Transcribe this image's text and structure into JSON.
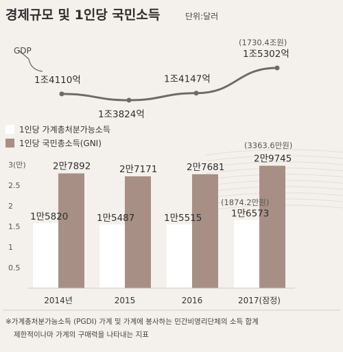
{
  "header": {
    "title": "경제규모 및 1인당 국민소득",
    "unit": "단위:달러"
  },
  "chart_data": [
    {
      "type": "line",
      "series": [
        {
          "name": "GDP",
          "values": [
            14110,
            13824,
            14147,
            15302
          ],
          "labels": [
            "1조4110억",
            "1조3824억",
            "1조4147억",
            "1조5302억"
          ]
        }
      ],
      "annotation": "(1730.4조원)"
    },
    {
      "type": "bar",
      "categories": [
        "2014년",
        "2015",
        "2016",
        "2017(잠정)"
      ],
      "ylim": [
        0,
        3
      ],
      "y_ticks": [
        "0.5",
        "1",
        "1.5",
        "2",
        "2.5",
        "3(만)"
      ],
      "grid": false,
      "legend": "top-left",
      "series": [
        {
          "name": "1인당 가계총처분가능소득",
          "values": [
            15820,
            15487,
            15515,
            16573
          ],
          "labels": [
            "1만5820",
            "1만5487",
            "1만5515",
            "1만6573"
          ],
          "color": "#ffffff"
        },
        {
          "name": "1인당 국민총소득(GNI)",
          "values": [
            27892,
            27171,
            27681,
            29745
          ],
          "labels": [
            "2만7892",
            "2만7171",
            "2만7681",
            "2만9745"
          ],
          "color": "#a88f85"
        }
      ],
      "annotations": [
        "(3363.6만원)",
        "(1874.2만원)"
      ]
    }
  ],
  "footnote": {
    "line1": "※가계총처분가능소득 (PGDI) 가계 및 가계에 봉사하는 민간비영리단체의 소득 합계",
    "line2": "제한적이나마 가계의 구매력을 나타내는 지표"
  },
  "colors": {
    "background": "#f4f1ec",
    "line": "#6e6a6a",
    "gni_bar": "#a88f85",
    "pgdi_bar": "#ffffff",
    "divider": "#cfcac4"
  }
}
